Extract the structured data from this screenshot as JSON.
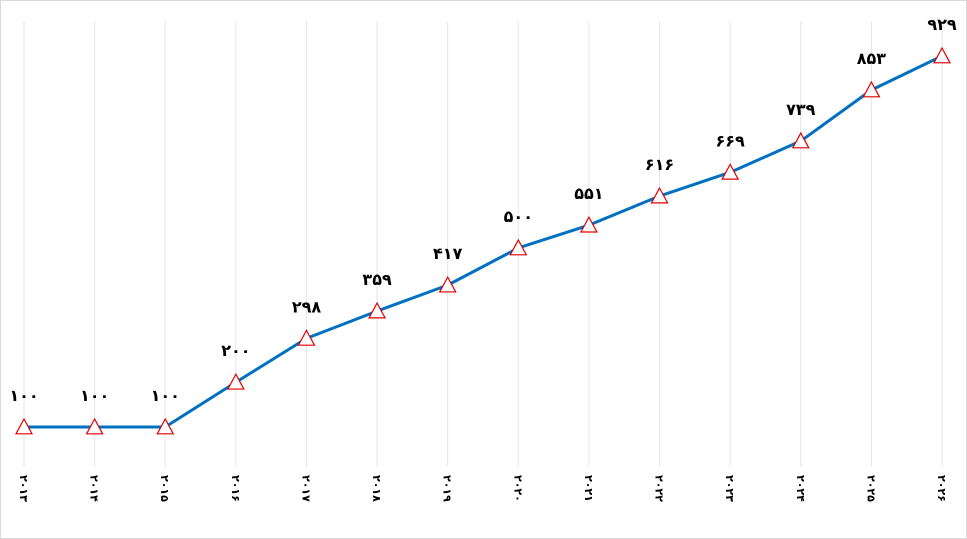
{
  "chart_data": {
    "type": "line",
    "title": "",
    "xlabel": "",
    "ylabel": "",
    "categories": [
      "۲۰۱۳",
      "۲۰۱۴",
      "۲۰۱۵",
      "۲۰۱۶",
      "۲۰۱۷",
      "۲۰۱۸",
      "۲۰۱۹",
      "۲۰۲۰",
      "۲۰۲۱",
      "۲۰۲۲",
      "۲۰۲۳",
      "۲۰۲۴",
      "۲۰۲۵",
      "۲۰۲۶"
    ],
    "values": [
      100,
      100,
      100,
      200,
      298,
      359,
      417,
      500,
      551,
      616,
      669,
      739,
      853,
      929
    ],
    "value_labels": [
      "۱۰۰",
      "۱۰۰",
      "۱۰۰",
      "۲۰۰",
      "۲۹۸",
      "۳۵۹",
      "۴۱۷",
      "۵۰۰",
      "۵۵۱",
      "۶۱۶",
      "۶۶۹",
      "۷۳۹",
      "۸۵۳",
      "۹۲۹"
    ],
    "ylim": [
      0,
      1000
    ],
    "grid": {
      "vertical": true,
      "horizontal": false
    },
    "legend": "none",
    "colors": {
      "line": "#0070C0",
      "marker_stroke": "#E00000",
      "marker_fill": "#ffffff",
      "grid": "#e6e6e6"
    },
    "marker": "triangle"
  }
}
